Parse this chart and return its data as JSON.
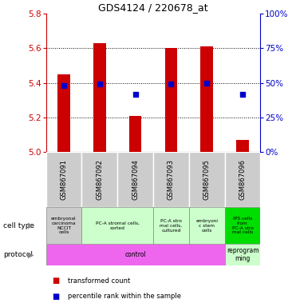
{
  "title": "GDS4124 / 220678_at",
  "samples": [
    "GSM867091",
    "GSM867092",
    "GSM867094",
    "GSM867093",
    "GSM867095",
    "GSM867096"
  ],
  "red_values": [
    5.45,
    5.63,
    5.21,
    5.6,
    5.61,
    5.07
  ],
  "blue_values": [
    5.385,
    5.395,
    5.335,
    5.395,
    5.4,
    5.335
  ],
  "ylim_left": [
    5.0,
    5.8
  ],
  "ylim_right": [
    0,
    100
  ],
  "yticks_left": [
    5.0,
    5.2,
    5.4,
    5.6,
    5.8
  ],
  "yticks_right": [
    0,
    25,
    50,
    75,
    100
  ],
  "ytick_right_labels": [
    "0%",
    "25%",
    "50%",
    "75%",
    "100%"
  ],
  "cell_type_groups": [
    {
      "label": "embryonal\ncarcinoma\nNCCIT\ncells",
      "start": 0,
      "end": 1,
      "color": "#cccccc"
    },
    {
      "label": "PC-A stromal cells,\nsorted",
      "start": 1,
      "end": 3,
      "color": "#ccffcc"
    },
    {
      "label": "PC-A stro\nmal cells,\ncultured",
      "start": 3,
      "end": 4,
      "color": "#ccffcc"
    },
    {
      "label": "embryoni\nc stem\ncells",
      "start": 4,
      "end": 5,
      "color": "#ccffcc"
    },
    {
      "label": "IPS cells\nfrom\nPC-A stro\nmal cells",
      "start": 5,
      "end": 6,
      "color": "#00dd00"
    }
  ],
  "protocol_groups": [
    {
      "label": "control",
      "start": 0,
      "end": 5,
      "color": "#ee66ee"
    },
    {
      "label": "reprogram\nming",
      "start": 5,
      "end": 6,
      "color": "#ccffcc"
    }
  ],
  "bar_color": "#cc0000",
  "dot_color": "#0000cc",
  "bar_width": 0.35,
  "bar_bottom": 5.0,
  "background_color": "#ffffff",
  "left_axis_color": "#cc0000",
  "right_axis_color": "#0000cc",
  "gridline_vals": [
    5.2,
    5.4,
    5.6
  ]
}
